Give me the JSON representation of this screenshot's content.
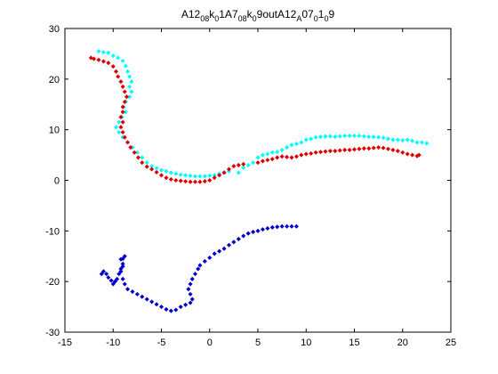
{
  "chart_data": {
    "type": "scatter",
    "title": {
      "parts": [
        {
          "t": "A12",
          "sub": false
        },
        {
          "t": "08",
          "sub": true
        },
        {
          "t": "k",
          "sub": false
        },
        {
          "t": "0",
          "sub": true
        },
        {
          "t": "1A7",
          "sub": false
        },
        {
          "t": "08",
          "sub": true
        },
        {
          "t": "k",
          "sub": false
        },
        {
          "t": "0",
          "sub": true
        },
        {
          "t": "9outA12",
          "sub": false
        },
        {
          "t": "A",
          "sub": true
        },
        {
          "t": "07",
          "sub": false
        },
        {
          "t": "0",
          "sub": true
        },
        {
          "t": "1",
          "sub": false
        },
        {
          "t": "0",
          "sub": true
        },
        {
          "t": "9",
          "sub": false
        }
      ]
    },
    "xlim": [
      -15,
      25
    ],
    "ylim": [
      -30,
      30
    ],
    "xticks": [
      -15,
      -10,
      -5,
      0,
      5,
      10,
      15,
      20,
      25
    ],
    "yticks": [
      -30,
      -20,
      -10,
      0,
      10,
      20,
      30
    ],
    "grid": false,
    "marker": "dot",
    "series": [
      {
        "color": "#00ffff",
        "points": [
          [
            -11.5,
            25.5
          ],
          [
            -11,
            25.3
          ],
          [
            -10.5,
            25.2
          ],
          [
            -10,
            24.6
          ],
          [
            -9.5,
            24.2
          ],
          [
            -9,
            23.6
          ],
          [
            -8.7,
            22.6
          ],
          [
            -8.5,
            21.5
          ],
          [
            -8.3,
            20.5
          ],
          [
            -8.1,
            19.5
          ],
          [
            -8.3,
            18.5
          ],
          [
            -8.1,
            17.5
          ],
          [
            -8.3,
            16.5
          ],
          [
            -8.7,
            15.6
          ],
          [
            -8.9,
            14.5
          ],
          [
            -8.7,
            13.5
          ],
          [
            -9.1,
            12.5
          ],
          [
            -9.4,
            11.5
          ],
          [
            -9.7,
            10.5
          ],
          [
            -9.4,
            9.5
          ],
          [
            -9.0,
            8.5
          ],
          [
            -8.5,
            7.5
          ],
          [
            -8.0,
            6.5
          ],
          [
            -7.5,
            5.5
          ],
          [
            -7.0,
            4.5
          ],
          [
            -6.5,
            3.5
          ],
          [
            -6.0,
            2.8
          ],
          [
            -5.5,
            2.4
          ],
          [
            -5.0,
            2.0
          ],
          [
            -4.5,
            1.8
          ],
          [
            -4.0,
            1.5
          ],
          [
            -3.5,
            1.3
          ],
          [
            -3.0,
            1.1
          ],
          [
            -2.5,
            1.0
          ],
          [
            -2.0,
            0.9
          ],
          [
            -1.5,
            0.8
          ],
          [
            -1.0,
            0.8
          ],
          [
            -0.5,
            0.8
          ],
          [
            0,
            0.9
          ],
          [
            0.5,
            1.0
          ],
          [
            1.0,
            1.3
          ],
          [
            1.5,
            1.6
          ],
          [
            2.0,
            1.8
          ],
          [
            3.0,
            1.5
          ],
          [
            3.5,
            2.5
          ],
          [
            4.0,
            3.0
          ],
          [
            4.5,
            3.5
          ],
          [
            5.0,
            4.5
          ],
          [
            5.5,
            5.0
          ],
          [
            6.0,
            5.2
          ],
          [
            6.5,
            5.5
          ],
          [
            7.0,
            5.6
          ],
          [
            7.5,
            6.0
          ],
          [
            8.0,
            6.5
          ],
          [
            8.5,
            7.0
          ],
          [
            9.0,
            7.2
          ],
          [
            9.5,
            7.5
          ],
          [
            10.0,
            8.0
          ],
          [
            10.5,
            8.2
          ],
          [
            11.0,
            8.5
          ],
          [
            11.5,
            8.6
          ],
          [
            12.0,
            8.7
          ],
          [
            12.5,
            8.7
          ],
          [
            13.0,
            8.6
          ],
          [
            13.5,
            8.7
          ],
          [
            14.0,
            8.8
          ],
          [
            14.5,
            8.8
          ],
          [
            15.0,
            8.8
          ],
          [
            15.5,
            8.8
          ],
          [
            16.0,
            8.7
          ],
          [
            16.5,
            8.6
          ],
          [
            17.0,
            8.6
          ],
          [
            17.5,
            8.5
          ],
          [
            18.0,
            8.4
          ],
          [
            18.5,
            8.2
          ],
          [
            19.0,
            8.0
          ],
          [
            19.5,
            8.0
          ],
          [
            20.0,
            7.9
          ],
          [
            20.5,
            8.0
          ],
          [
            21.0,
            7.8
          ],
          [
            21.5,
            7.5
          ],
          [
            22.0,
            7.5
          ],
          [
            22.5,
            7.3
          ]
        ]
      },
      {
        "color": "#dd0000",
        "points": [
          [
            -12.3,
            24.2
          ],
          [
            -12.0,
            24.0
          ],
          [
            -11.5,
            23.8
          ],
          [
            -11.0,
            23.5
          ],
          [
            -10.5,
            23.2
          ],
          [
            -10.0,
            22.5
          ],
          [
            -9.7,
            21.5
          ],
          [
            -9.5,
            20.5
          ],
          [
            -9.2,
            19.5
          ],
          [
            -9.0,
            18.5
          ],
          [
            -8.8,
            17.5
          ],
          [
            -8.6,
            16.5
          ],
          [
            -8.8,
            15.5
          ],
          [
            -9.0,
            14.5
          ],
          [
            -9.0,
            13.5
          ],
          [
            -9.2,
            12.5
          ],
          [
            -9.0,
            11.5
          ],
          [
            -9.2,
            10.5
          ],
          [
            -9.0,
            9.5
          ],
          [
            -8.8,
            8.5
          ],
          [
            -8.5,
            7.5
          ],
          [
            -8.2,
            6.5
          ],
          [
            -7.8,
            5.5
          ],
          [
            -7.4,
            4.5
          ],
          [
            -7.0,
            3.5
          ],
          [
            -6.5,
            2.7
          ],
          [
            -6.0,
            2.2
          ],
          [
            -5.5,
            1.6
          ],
          [
            -5.0,
            1.0
          ],
          [
            -4.5,
            0.5
          ],
          [
            -4.0,
            0.2
          ],
          [
            -3.5,
            0.0
          ],
          [
            -3.0,
            -0.1
          ],
          [
            -2.5,
            -0.2
          ],
          [
            -2.0,
            -0.3
          ],
          [
            -1.5,
            -0.3
          ],
          [
            -1.0,
            -0.3
          ],
          [
            -0.5,
            -0.2
          ],
          [
            0.0,
            0.0
          ],
          [
            0.5,
            0.5
          ],
          [
            1.0,
            1.0
          ],
          [
            1.5,
            1.5
          ],
          [
            2.0,
            2.2
          ],
          [
            2.5,
            2.8
          ],
          [
            3.0,
            3.0
          ],
          [
            3.5,
            3.2
          ],
          [
            5.0,
            3.5
          ],
          [
            5.5,
            3.8
          ],
          [
            6.0,
            4.0
          ],
          [
            6.5,
            4.2
          ],
          [
            7.0,
            4.5
          ],
          [
            7.5,
            4.7
          ],
          [
            8.0,
            4.6
          ],
          [
            8.5,
            4.5
          ],
          [
            9.0,
            4.7
          ],
          [
            9.5,
            5.0
          ],
          [
            10.0,
            5.2
          ],
          [
            10.5,
            5.3
          ],
          [
            11.0,
            5.5
          ],
          [
            11.5,
            5.6
          ],
          [
            12.0,
            5.7
          ],
          [
            12.5,
            5.8
          ],
          [
            13.0,
            5.8
          ],
          [
            13.5,
            5.9
          ],
          [
            14.0,
            6.0
          ],
          [
            14.5,
            6.0
          ],
          [
            15.0,
            6.1
          ],
          [
            15.5,
            6.2
          ],
          [
            16.0,
            6.3
          ],
          [
            16.5,
            6.3
          ],
          [
            17.0,
            6.4
          ],
          [
            17.5,
            6.5
          ],
          [
            18.0,
            6.4
          ],
          [
            18.5,
            6.2
          ],
          [
            19.0,
            6.0
          ],
          [
            19.5,
            5.8
          ],
          [
            20.0,
            5.5
          ],
          [
            20.5,
            5.2
          ],
          [
            21.0,
            5.0
          ],
          [
            21.5,
            4.8
          ],
          [
            21.7,
            5.0
          ]
        ]
      },
      {
        "color": "#0000cc",
        "points": [
          [
            -11.2,
            -18.5
          ],
          [
            -11.0,
            -18.0
          ],
          [
            -10.7,
            -18.5
          ],
          [
            -10.5,
            -19.2
          ],
          [
            -10.2,
            -19.8
          ],
          [
            -10.0,
            -20.5
          ],
          [
            -9.8,
            -20.0
          ],
          [
            -9.6,
            -19.5
          ],
          [
            -9.4,
            -18.5
          ],
          [
            -9.2,
            -17.5
          ],
          [
            -9.0,
            -16.5
          ],
          [
            -9.0,
            -15.5
          ],
          [
            -8.8,
            -15.0
          ],
          [
            -9.2,
            -15.6
          ],
          [
            -9.0,
            -17.0
          ],
          [
            -9.2,
            -18.0
          ],
          [
            -9.0,
            -19.5
          ],
          [
            -8.8,
            -20.5
          ],
          [
            -8.5,
            -21.5
          ],
          [
            -8.0,
            -22.0
          ],
          [
            -7.5,
            -22.5
          ],
          [
            -7.0,
            -23.0
          ],
          [
            -6.5,
            -23.5
          ],
          [
            -6.0,
            -24.0
          ],
          [
            -5.5,
            -24.5
          ],
          [
            -5.0,
            -25.0
          ],
          [
            -4.5,
            -25.5
          ],
          [
            -4.0,
            -25.8
          ],
          [
            -3.5,
            -25.6
          ],
          [
            -3.0,
            -25.0
          ],
          [
            -2.5,
            -24.6
          ],
          [
            -2.0,
            -24.2
          ],
          [
            -1.8,
            -23.5
          ],
          [
            -2.0,
            -22.5
          ],
          [
            -2.2,
            -21.5
          ],
          [
            -2.0,
            -20.5
          ],
          [
            -1.8,
            -19.5
          ],
          [
            -1.5,
            -18.5
          ],
          [
            -1.2,
            -17.5
          ],
          [
            -1.0,
            -16.8
          ],
          [
            -0.5,
            -16.0
          ],
          [
            0.0,
            -15.3
          ],
          [
            0.5,
            -14.5
          ],
          [
            1.0,
            -14.0
          ],
          [
            1.5,
            -13.5
          ],
          [
            2.0,
            -12.8
          ],
          [
            2.5,
            -12.2
          ],
          [
            3.0,
            -11.6
          ],
          [
            3.5,
            -11.0
          ],
          [
            4.0,
            -10.5
          ],
          [
            4.5,
            -10.2
          ],
          [
            5.0,
            -10.0
          ],
          [
            5.5,
            -9.7
          ],
          [
            6.0,
            -9.5
          ],
          [
            6.5,
            -9.3
          ],
          [
            7.0,
            -9.2
          ],
          [
            7.5,
            -9.1
          ],
          [
            8.0,
            -9.1
          ],
          [
            8.5,
            -9.1
          ],
          [
            9.0,
            -9.1
          ]
        ]
      }
    ]
  }
}
